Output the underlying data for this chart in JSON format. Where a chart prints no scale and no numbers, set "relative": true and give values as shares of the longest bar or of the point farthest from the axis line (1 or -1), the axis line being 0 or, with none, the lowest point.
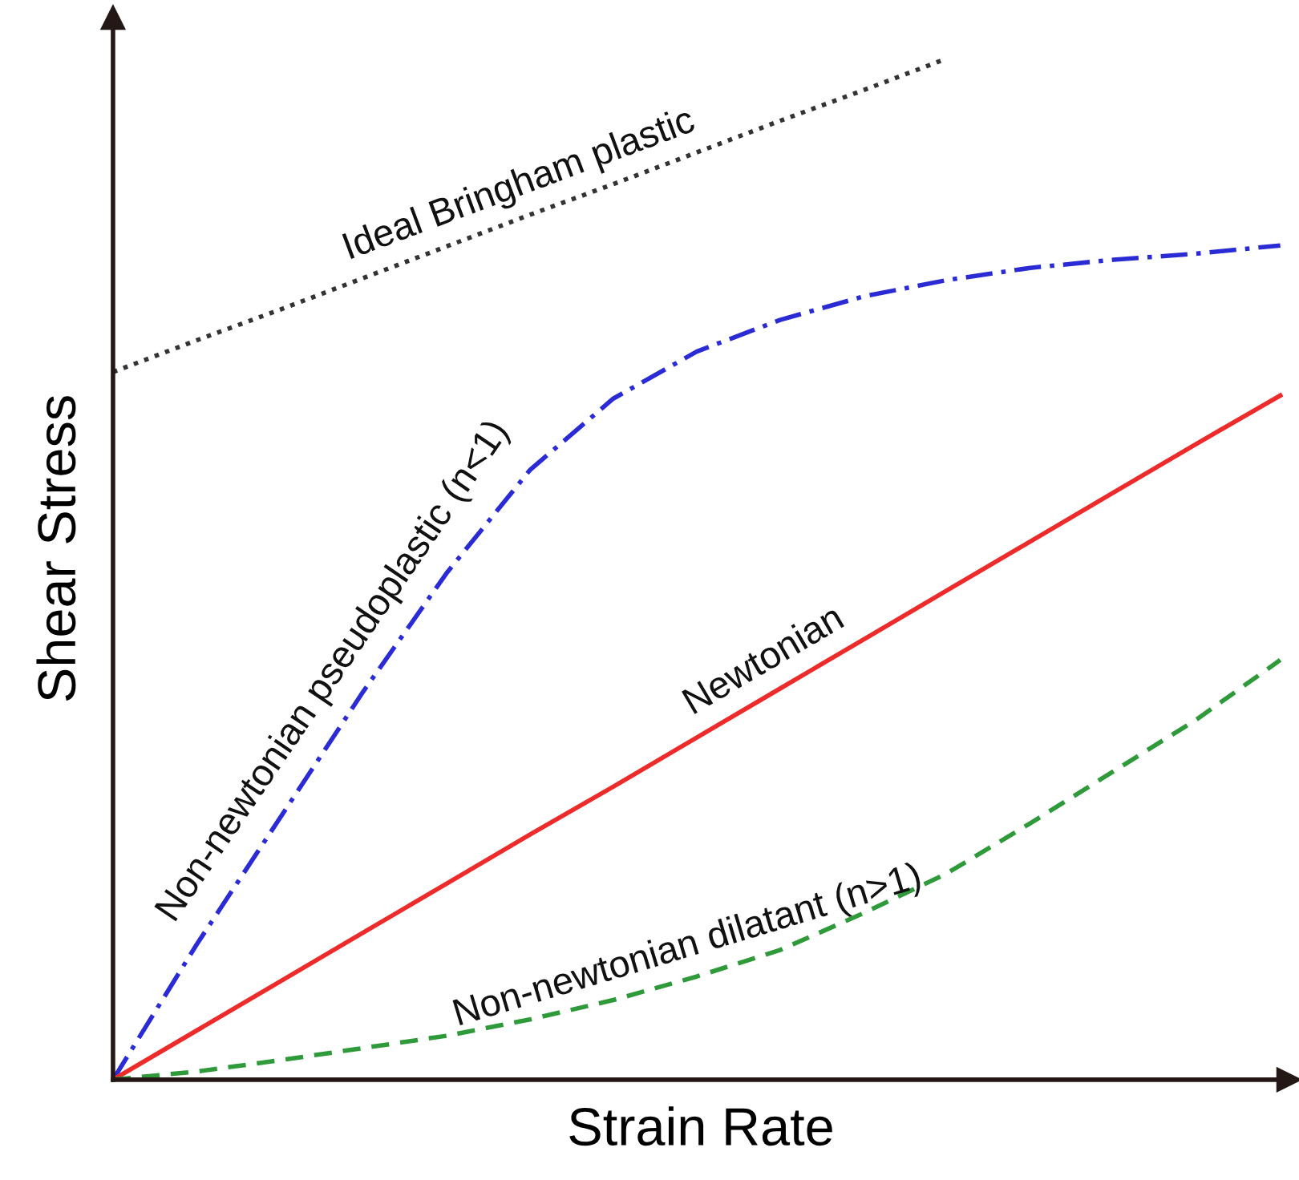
{
  "chart_data": {
    "type": "line",
    "relative": true,
    "xlabel": "Strain Rate",
    "ylabel": "Shear Stress",
    "categories": [
      null,
      null,
      null,
      null,
      null,
      null,
      null,
      null,
      null,
      null,
      null,
      null,
      null,
      null,
      null
    ],
    "series": [
      {
        "name": "Ideal Bringham plastic",
        "color": "#333333",
        "line_style": "dotted",
        "values": [
          0.693,
          0.724,
          0.754,
          0.785,
          0.816,
          0.847,
          0.877,
          0.908,
          0.939,
          0.969,
          1.0,
          null,
          null,
          null,
          null
        ]
      },
      {
        "name": "Non-newtonian pseudoplastic (n<1)",
        "color": "#2b2bd6",
        "line_style": "dashdot",
        "values": [
          0,
          0.132,
          0.256,
          0.38,
          0.496,
          0.597,
          0.667,
          0.713,
          0.744,
          0.767,
          0.783,
          0.795,
          0.803,
          0.809,
          0.817
        ]
      },
      {
        "name": "Newtonian",
        "color": "#ee2b2b",
        "line_style": "solid",
        "values": [
          0,
          0.048,
          0.096,
          0.144,
          0.192,
          0.24,
          0.287,
          0.335,
          0.383,
          0.431,
          0.479,
          0.527,
          0.575,
          0.623,
          0.67
        ]
      },
      {
        "name": "Non-newtonian dilatant (n>1)",
        "color": "#2e9a3a",
        "line_style": "dashed",
        "values": [
          0,
          0.008,
          0.019,
          0.031,
          0.043,
          0.059,
          0.078,
          0.101,
          0.127,
          0.163,
          0.202,
          0.251,
          0.302,
          0.353,
          0.411
        ]
      }
    ]
  }
}
